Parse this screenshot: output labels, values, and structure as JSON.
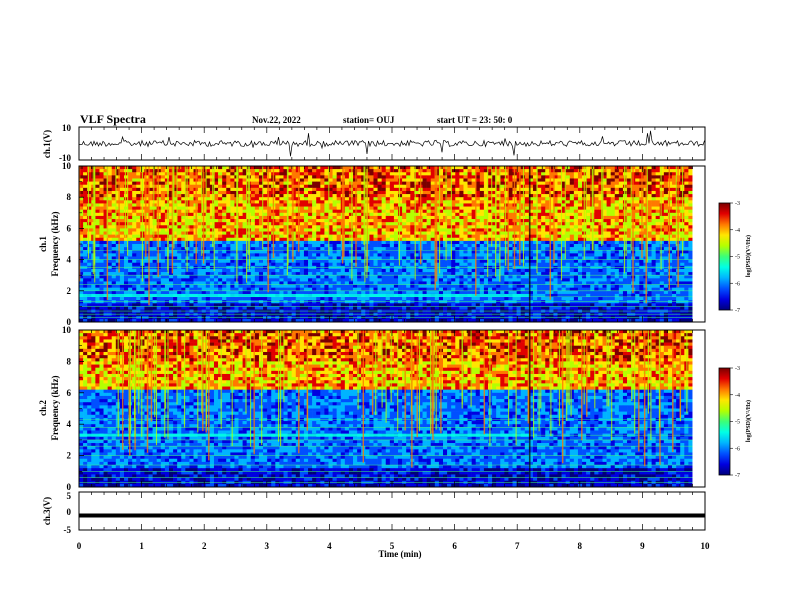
{
  "header": {
    "title": "VLF Spectra",
    "date": "Nov.22, 2022",
    "station": "station= OUJ",
    "start": "start  UT =   23: 50: 0"
  },
  "colors": {
    "axis": "#000000",
    "background": "#ffffff",
    "colormap": [
      "#00007a",
      "#0000e0",
      "#0050ff",
      "#00b4ff",
      "#00ffe6",
      "#3cff78",
      "#b4ff00",
      "#ffe600",
      "#ff7800",
      "#e10000",
      "#7a0000"
    ]
  },
  "chart_data": [
    {
      "type": "line",
      "name": "ch1-waveform",
      "ylabel": "ch.1(V)",
      "ylim": [
        -10,
        10
      ],
      "yticks": [
        "10",
        "-10"
      ],
      "xlim": [
        0,
        10
      ],
      "baseline": 0,
      "grid": false
    },
    {
      "type": "heatmap",
      "name": "ch1-spectrogram",
      "ylabel_line1": "ch.1",
      "ylabel_line2": "Frequency  (kHz)",
      "ylim": [
        0,
        10
      ],
      "yticks": [
        "0",
        "2",
        "4",
        "6",
        "8",
        "10"
      ],
      "xlim": [
        0,
        9.8
      ],
      "colorbar": {
        "label": "log(PSD)(V²/Hz)",
        "range": [
          -7,
          -3
        ],
        "ticks": [
          "-3",
          "-4",
          "-5",
          "-6",
          "-7"
        ]
      },
      "noise_floor_top_khz": 5.3,
      "band_lines_khz": [
        0.3,
        0.5,
        0.7,
        1.0,
        1.3,
        1.65,
        2.0,
        2.4,
        3.0,
        3.5,
        4.0,
        4.6
      ],
      "bright_band_khz": 1.7,
      "change_time_min": 7.2
    },
    {
      "type": "heatmap",
      "name": "ch2-spectrogram",
      "ylabel_line1": "ch.2",
      "ylabel_line2": "Frequency  (kHz)",
      "ylim": [
        0,
        10
      ],
      "yticks": [
        "0",
        "2",
        "4",
        "6",
        "8",
        "10"
      ],
      "xlim": [
        0,
        9.8
      ],
      "colorbar": {
        "label": "log(PSD)(V²/Hz)",
        "range": [
          -7,
          -3
        ],
        "ticks": [
          "-3",
          "-4",
          "-5",
          "-6",
          "-7"
        ]
      },
      "noise_floor_top_khz": 6.2,
      "band_lines_khz": [
        0.3,
        0.6,
        1.0,
        1.4,
        2.0,
        2.6,
        3.0,
        3.3,
        3.8,
        4.3
      ],
      "bright_band_khz": 3.3,
      "change_time_min": 7.2
    },
    {
      "type": "line",
      "name": "ch3-waveform",
      "ylabel": "ch.3(V)",
      "ylim": [
        -5,
        5
      ],
      "yticks": [
        "5",
        "0",
        "-5"
      ],
      "xlim": [
        0,
        10
      ],
      "level": -1.2,
      "grid": false
    }
  ],
  "xaxis": {
    "label": "Time  (min)",
    "ticks": [
      "0",
      "1",
      "2",
      "3",
      "4",
      "5",
      "6",
      "7",
      "8",
      "9",
      "10"
    ]
  }
}
